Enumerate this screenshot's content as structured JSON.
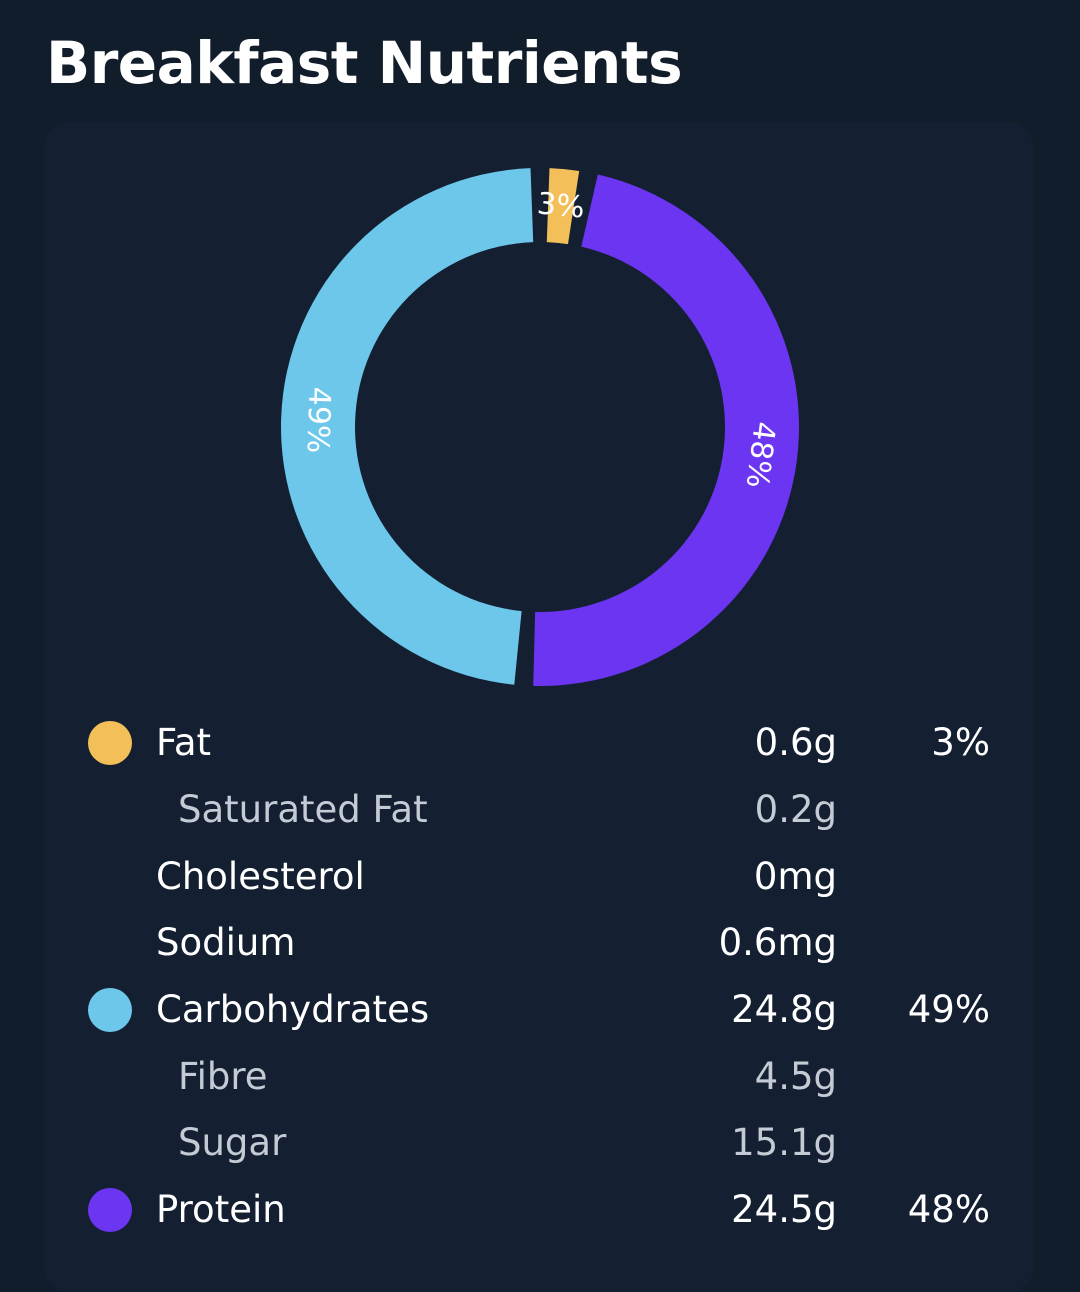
{
  "title": "Breakfast Nutrients",
  "chart_data": {
    "type": "pie",
    "style": "donut",
    "slices": [
      {
        "name": "Fat",
        "value": 3,
        "label": "3%",
        "color": "#f3bf58"
      },
      {
        "name": "Protein",
        "value": 48,
        "label": "48%",
        "color": "#6c35f2"
      },
      {
        "name": "Carbohydrates",
        "value": 49,
        "label": "49%",
        "color": "#6cc7ea"
      }
    ]
  },
  "nutrients": [
    {
      "name": "Fat",
      "amount": "0.6g",
      "percent": "3%",
      "color": "#f3bf58",
      "sub": false
    },
    {
      "name": "Saturated Fat",
      "amount": "0.2g",
      "percent": "",
      "color": "",
      "sub": true
    },
    {
      "name": "Cholesterol",
      "amount": "0mg",
      "percent": "",
      "color": "",
      "sub": false
    },
    {
      "name": "Sodium",
      "amount": "0.6mg",
      "percent": "",
      "color": "",
      "sub": false
    },
    {
      "name": "Carbohydrates",
      "amount": "24.8g",
      "percent": "49%",
      "color": "#6cc7ea",
      "sub": false
    },
    {
      "name": "Fibre",
      "amount": "4.5g",
      "percent": "",
      "color": "",
      "sub": true
    },
    {
      "name": "Sugar",
      "amount": "15.1g",
      "percent": "",
      "color": "",
      "sub": true
    },
    {
      "name": "Protein",
      "amount": "24.5g",
      "percent": "48%",
      "color": "#6c35f2",
      "sub": false
    }
  ]
}
